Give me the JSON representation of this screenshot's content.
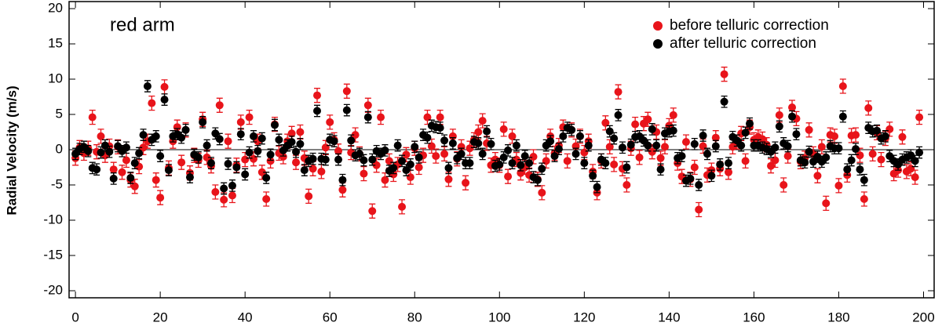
{
  "chart_data": {
    "type": "errorbar-scatter",
    "annotation": "red arm",
    "y_label": "Radial Velocity (m/s)",
    "xlim": [
      -1.5,
      202.5
    ],
    "xticks": [
      0,
      20,
      40,
      60,
      80,
      100,
      120,
      140,
      160,
      180,
      200
    ],
    "ylim": [
      -21,
      21
    ],
    "yticks": [
      -20,
      -15,
      -10,
      -5,
      0,
      5,
      10,
      15,
      20
    ],
    "hline": 0,
    "legend": "upper-right",
    "x": [
      0,
      1,
      2,
      3,
      4,
      5,
      6,
      7,
      8,
      9,
      10,
      11,
      12,
      13,
      14,
      15,
      16,
      17,
      18,
      19,
      20,
      21,
      22,
      23,
      24,
      25,
      26,
      27,
      28,
      29,
      30,
      31,
      32,
      33,
      34,
      35,
      36,
      37,
      38,
      39,
      40,
      41,
      42,
      43,
      44,
      45,
      46,
      47,
      48,
      49,
      50,
      51,
      52,
      53,
      54,
      55,
      56,
      57,
      58,
      59,
      60,
      61,
      62,
      63,
      64,
      65,
      66,
      67,
      68,
      69,
      70,
      71,
      72,
      73,
      74,
      75,
      76,
      77,
      78,
      79,
      80,
      81,
      82,
      83,
      84,
      85,
      86,
      87,
      88,
      89,
      90,
      91,
      92,
      93,
      94,
      95,
      96,
      97,
      98,
      99,
      100,
      101,
      102,
      103,
      104,
      105,
      106,
      107,
      108,
      109,
      110,
      111,
      112,
      113,
      114,
      115,
      116,
      117,
      118,
      119,
      120,
      121,
      122,
      123,
      124,
      125,
      126,
      127,
      128,
      129,
      130,
      131,
      132,
      133,
      134,
      135,
      136,
      137,
      138,
      139,
      140,
      141,
      142,
      143,
      144,
      145,
      146,
      147,
      148,
      149,
      150,
      151,
      152,
      153,
      154,
      155,
      156,
      157,
      158,
      159,
      160,
      161,
      162,
      163,
      164,
      165,
      166,
      167,
      168,
      169,
      170,
      171,
      172,
      173,
      174,
      175,
      176,
      177,
      178,
      179,
      180,
      181,
      182,
      183,
      184,
      185,
      186,
      187,
      188,
      189,
      190,
      191,
      192,
      193,
      194,
      195,
      196,
      197,
      198,
      199
    ],
    "series": [
      {
        "name": "before telluric correction",
        "color": "#e8141a",
        "yerr": 1,
        "values": [
          -1.2,
          0.3,
          -0.5,
          0.2,
          4.6,
          -0.3,
          1.9,
          -0.8,
          0.5,
          -2.8,
          0.4,
          -3.2,
          -1.5,
          -4.3,
          -5.2,
          -2.4,
          0.3,
          1.2,
          6.6,
          -4.3,
          -6.8,
          8.9,
          -2.6,
          1.2,
          3.2,
          -1.8,
          2.8,
          -3.3,
          -0.8,
          -1.5,
          4.3,
          -1.1,
          -2.3,
          -6,
          6.3,
          -7.1,
          1.2,
          -6.5,
          -2.2,
          3.9,
          -1.4,
          4.6,
          -1.3,
          1.2,
          -3.2,
          -7,
          -1.6,
          3.6,
          -0.5,
          -1,
          1.2,
          2.3,
          -1.8,
          2.5,
          -1.2,
          -6.6,
          -2.7,
          7.7,
          -3.1,
          0.3,
          3.9,
          1.4,
          -0.2,
          -5.7,
          8.3,
          -0.4,
          2.1,
          -0.6,
          -3.4,
          6.3,
          -8.7,
          -2.2,
          4.6,
          -4.3,
          -1.6,
          -3.5,
          -2.1,
          -8.1,
          -0.7,
          -3.9,
          0.2,
          -2.5,
          -0.8,
          4.6,
          0.5,
          -0.9,
          4.6,
          -0.6,
          -4.2,
          1.9,
          -1.3,
          0.4,
          -4.7,
          0.2,
          1.4,
          2.5,
          4.1,
          0.9,
          -2.2,
          -1.4,
          -2.2,
          2.9,
          -3.8,
          1.9,
          -1.4,
          -3.3,
          -2.5,
          -3.6,
          -1,
          -4.2,
          -6.1,
          -1.6,
          1.9,
          -0.5,
          0.6,
          3.2,
          -1.6,
          2.8,
          0.5,
          1.9,
          -0.4,
          1.2,
          -3.1,
          -6.1,
          -1.6,
          3.8,
          0.4,
          -2.1,
          8.2,
          -2.7,
          -5,
          0.2,
          3.6,
          -1.1,
          3.7,
          4.3,
          -0.3,
          2.5,
          -1.2,
          0.4,
          3.4,
          4.9,
          -1.9,
          -3.8,
          1.1,
          -4.2,
          -2.5,
          -8.5,
          0.5,
          -3.6,
          -2.9,
          1.7,
          -2.7,
          10.7,
          -3.2,
          0.4,
          1.1,
          2.3,
          -1.6,
          3.2,
          1.4,
          1.8,
          1.5,
          0.7,
          -2.3,
          -1.5,
          4.9,
          -5,
          -0.9,
          6,
          4.4,
          -1.7,
          -1.2,
          2.8,
          -0.6,
          -3.7,
          0.4,
          -7.6,
          2.1,
          1.9,
          -5.1,
          9,
          -3.6,
          2,
          2.1,
          -0.8,
          -7,
          5.9,
          -0.6,
          2.4,
          -1.4,
          1.6,
          2.9,
          -3.4,
          -2.9,
          1.8,
          -3.1,
          -2.7,
          -3.9,
          4.6
        ]
      },
      {
        "name": "after telluric correction",
        "color": "#000000",
        "yerr": 0.8,
        "values": [
          -0.6,
          0.1,
          0.4,
          -0.2,
          -2.6,
          -2.8,
          -0.4,
          0.6,
          -0.3,
          -4.1,
          0.5,
          -0.2,
          0.3,
          -4,
          -1.9,
          -0.5,
          2.1,
          9,
          1.4,
          1.9,
          -0.9,
          7.1,
          -2.9,
          1.9,
          2.2,
          1.7,
          2.8,
          -3.9,
          -0.7,
          -1.1,
          3.9,
          0.6,
          -1.9,
          2.3,
          1.5,
          -5.5,
          -2,
          -5.1,
          -2.5,
          2.2,
          -3.5,
          -0.4,
          1.9,
          -0.2,
          1.6,
          -4,
          -0.7,
          3.5,
          1.4,
          -0.1,
          0.6,
          1.1,
          -0.3,
          0.8,
          -2.9,
          -1.6,
          -1.3,
          5.5,
          -1.3,
          -1.4,
          1.4,
          1.2,
          -1.4,
          -4.3,
          5.6,
          1.3,
          -0.8,
          -0.6,
          -1.5,
          4.6,
          -1.4,
          -0.2,
          -0.6,
          -0.1,
          -3,
          -2.6,
          0.6,
          -1.6,
          -2.9,
          -2.1,
          0.4,
          -1.1,
          2.1,
          1.7,
          3.4,
          3.2,
          3.1,
          1.3,
          -2.6,
          0.9,
          -1.2,
          -0.6,
          -1.9,
          -1.9,
          1.1,
          0.9,
          -0.6,
          2.6,
          0.8,
          -2.3,
          -2.1,
          -1.1,
          -0.1,
          -1.9,
          0.6,
          -2.2,
          -0.9,
          -1.9,
          -3.9,
          -4.3,
          -2.7,
          0.6,
          1.2,
          -0.9,
          0.1,
          1.9,
          3.1,
          2.8,
          -0.6,
          1.9,
          -1.9,
          0.6,
          -3.7,
          -5.3,
          -1.4,
          -1.9,
          2.6,
          1.6,
          4.9,
          0.3,
          -2.5,
          0.7,
          1.8,
          1.9,
          1.3,
          0.6,
          2.9,
          0.6,
          -2.8,
          2.3,
          2.6,
          2.7,
          -1.2,
          -0.9,
          -4.4,
          -4.1,
          0.8,
          -5,
          2,
          -0.6,
          -3.7,
          0.5,
          -2.1,
          6.8,
          -1.9,
          1.8,
          1.3,
          0.6,
          2.4,
          3.7,
          0.6,
          0.6,
          0.3,
          0.1,
          -0.3,
          0.3,
          3.3,
          0.9,
          0.5,
          4.7,
          2.2,
          -1.5,
          -1.8,
          -0.3,
          -1.7,
          -1,
          -1.7,
          -1.1,
          0.5,
          0.2,
          0.2,
          4.7,
          -2.8,
          -1.5,
          0.1,
          -2.8,
          -4.3,
          3.1,
          2.6,
          2.7,
          1.6,
          1.9,
          -0.9,
          -1.6,
          -2.1,
          -1.4,
          -1.1,
          -0.8,
          -1.6,
          -0.4
        ]
      }
    ]
  }
}
